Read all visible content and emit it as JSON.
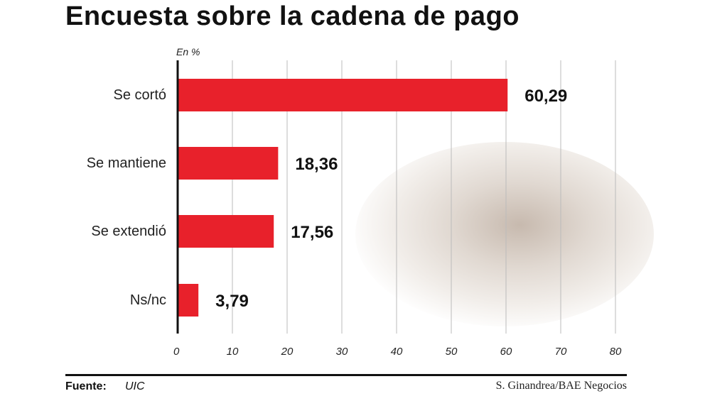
{
  "chart_data": {
    "type": "bar",
    "orientation": "horizontal",
    "title": "Encuesta sobre la cadena de pago",
    "unit_label": "En %",
    "categories": [
      "Se cortó",
      "Se mantiene",
      "Se extendió",
      "Ns/nc"
    ],
    "values": [
      60.29,
      18.36,
      17.56,
      3.79
    ],
    "value_labels": [
      "60,29",
      "18,36",
      "17,56",
      "3,79"
    ],
    "xlim": [
      0,
      80
    ],
    "xticks": [
      0,
      10,
      20,
      30,
      40,
      50,
      60,
      70,
      80
    ],
    "grid": true,
    "bar_color": "#e8212b"
  },
  "footer": {
    "source_label": "Fuente:",
    "source_value": "UIC",
    "credit": "S. Ginandrea/BAE Negocios"
  }
}
